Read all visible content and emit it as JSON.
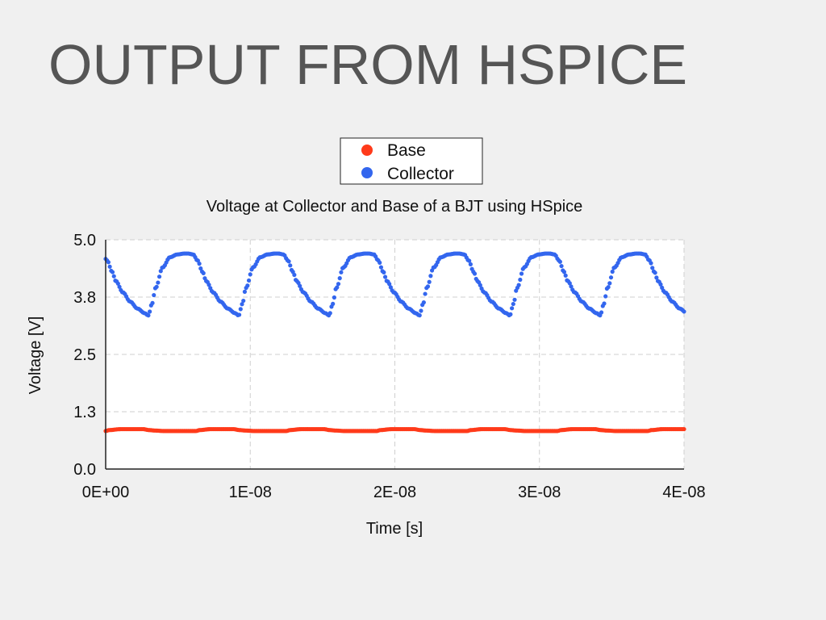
{
  "slide": {
    "title": "OUTPUT FROM HSPICE"
  },
  "chart_data": {
    "type": "scatter",
    "title": "Voltage at Collector and Base of a BJT using HSpice",
    "xlabel": "Time [s]",
    "ylabel": "Voltage [V]",
    "xlim": [
      0,
      4e-08
    ],
    "ylim": [
      0,
      5
    ],
    "x_ticks": [
      "0E+00",
      "1E-08",
      "2E-08",
      "3E-08",
      "4E-08"
    ],
    "y_ticks": [
      "0.0",
      "1.3",
      "2.5",
      "3.8",
      "5.0"
    ],
    "grid": true,
    "legend_position": "top-center",
    "period_s": 6.25e-09,
    "series": [
      {
        "name": "Base",
        "color": "#ff3a1a",
        "marker": "circle",
        "values_one_period": {
          "t": [
            0,
            2.5e-10,
            1e-09,
            1.5e-09,
            2.6e-09,
            3e-09,
            3.4e-09,
            4e-09,
            5e-09,
            5.5e-09,
            6.25e-09
          ],
          "v": [
            0.83,
            0.85,
            0.87,
            0.87,
            0.87,
            0.85,
            0.84,
            0.83,
            0.83,
            0.83,
            0.83
          ]
        }
      },
      {
        "name": "Collector",
        "color": "#3366ee",
        "marker": "circle",
        "values_one_period": {
          "t": [
            0,
            2.5e-10,
            5e-10,
            1e-09,
            1.5e-09,
            2e-09,
            2.5e-09,
            2.75e-09,
            3.1e-09,
            3.4e-09,
            3.75e-09,
            4e-09,
            4.5e-09,
            5e-09,
            5.5e-09,
            6e-09,
            6.25e-09
          ],
          "v": [
            3.35,
            3.6,
            3.95,
            4.4,
            4.62,
            4.68,
            4.7,
            4.7,
            4.68,
            4.55,
            4.3,
            4.1,
            3.85,
            3.65,
            3.5,
            3.4,
            3.35
          ]
        },
        "phase_offset_s": 3.3e-09
      }
    ]
  }
}
